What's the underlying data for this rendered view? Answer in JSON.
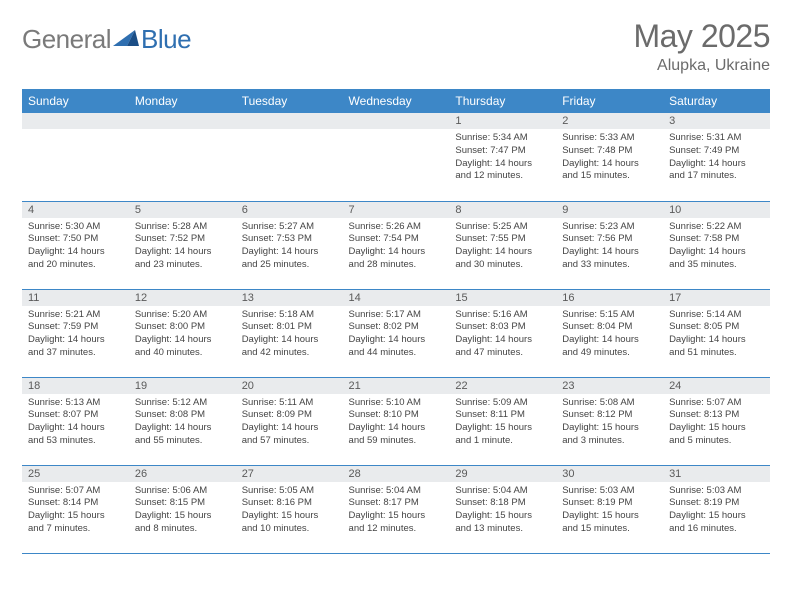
{
  "brand": {
    "name_prefix": "General",
    "name_suffix": "Blue"
  },
  "title": "May 2025",
  "location": "Alupka, Ukraine",
  "colors": {
    "header_bg": "#3d87c7",
    "header_text": "#ffffff",
    "daynum_bg": "#e9ebed",
    "text": "#444444",
    "title_text": "#6b6b6b",
    "divider": "#3d87c7",
    "logo_gray": "#7a7a7a",
    "logo_blue": "#2f6fb0"
  },
  "day_headers": [
    "Sunday",
    "Monday",
    "Tuesday",
    "Wednesday",
    "Thursday",
    "Friday",
    "Saturday"
  ],
  "weeks": [
    [
      {
        "n": "",
        "lines": []
      },
      {
        "n": "",
        "lines": []
      },
      {
        "n": "",
        "lines": []
      },
      {
        "n": "",
        "lines": []
      },
      {
        "n": "1",
        "lines": [
          "Sunrise: 5:34 AM",
          "Sunset: 7:47 PM",
          "Daylight: 14 hours",
          "and 12 minutes."
        ]
      },
      {
        "n": "2",
        "lines": [
          "Sunrise: 5:33 AM",
          "Sunset: 7:48 PM",
          "Daylight: 14 hours",
          "and 15 minutes."
        ]
      },
      {
        "n": "3",
        "lines": [
          "Sunrise: 5:31 AM",
          "Sunset: 7:49 PM",
          "Daylight: 14 hours",
          "and 17 minutes."
        ]
      }
    ],
    [
      {
        "n": "4",
        "lines": [
          "Sunrise: 5:30 AM",
          "Sunset: 7:50 PM",
          "Daylight: 14 hours",
          "and 20 minutes."
        ]
      },
      {
        "n": "5",
        "lines": [
          "Sunrise: 5:28 AM",
          "Sunset: 7:52 PM",
          "Daylight: 14 hours",
          "and 23 minutes."
        ]
      },
      {
        "n": "6",
        "lines": [
          "Sunrise: 5:27 AM",
          "Sunset: 7:53 PM",
          "Daylight: 14 hours",
          "and 25 minutes."
        ]
      },
      {
        "n": "7",
        "lines": [
          "Sunrise: 5:26 AM",
          "Sunset: 7:54 PM",
          "Daylight: 14 hours",
          "and 28 minutes."
        ]
      },
      {
        "n": "8",
        "lines": [
          "Sunrise: 5:25 AM",
          "Sunset: 7:55 PM",
          "Daylight: 14 hours",
          "and 30 minutes."
        ]
      },
      {
        "n": "9",
        "lines": [
          "Sunrise: 5:23 AM",
          "Sunset: 7:56 PM",
          "Daylight: 14 hours",
          "and 33 minutes."
        ]
      },
      {
        "n": "10",
        "lines": [
          "Sunrise: 5:22 AM",
          "Sunset: 7:58 PM",
          "Daylight: 14 hours",
          "and 35 minutes."
        ]
      }
    ],
    [
      {
        "n": "11",
        "lines": [
          "Sunrise: 5:21 AM",
          "Sunset: 7:59 PM",
          "Daylight: 14 hours",
          "and 37 minutes."
        ]
      },
      {
        "n": "12",
        "lines": [
          "Sunrise: 5:20 AM",
          "Sunset: 8:00 PM",
          "Daylight: 14 hours",
          "and 40 minutes."
        ]
      },
      {
        "n": "13",
        "lines": [
          "Sunrise: 5:18 AM",
          "Sunset: 8:01 PM",
          "Daylight: 14 hours",
          "and 42 minutes."
        ]
      },
      {
        "n": "14",
        "lines": [
          "Sunrise: 5:17 AM",
          "Sunset: 8:02 PM",
          "Daylight: 14 hours",
          "and 44 minutes."
        ]
      },
      {
        "n": "15",
        "lines": [
          "Sunrise: 5:16 AM",
          "Sunset: 8:03 PM",
          "Daylight: 14 hours",
          "and 47 minutes."
        ]
      },
      {
        "n": "16",
        "lines": [
          "Sunrise: 5:15 AM",
          "Sunset: 8:04 PM",
          "Daylight: 14 hours",
          "and 49 minutes."
        ]
      },
      {
        "n": "17",
        "lines": [
          "Sunrise: 5:14 AM",
          "Sunset: 8:05 PM",
          "Daylight: 14 hours",
          "and 51 minutes."
        ]
      }
    ],
    [
      {
        "n": "18",
        "lines": [
          "Sunrise: 5:13 AM",
          "Sunset: 8:07 PM",
          "Daylight: 14 hours",
          "and 53 minutes."
        ]
      },
      {
        "n": "19",
        "lines": [
          "Sunrise: 5:12 AM",
          "Sunset: 8:08 PM",
          "Daylight: 14 hours",
          "and 55 minutes."
        ]
      },
      {
        "n": "20",
        "lines": [
          "Sunrise: 5:11 AM",
          "Sunset: 8:09 PM",
          "Daylight: 14 hours",
          "and 57 minutes."
        ]
      },
      {
        "n": "21",
        "lines": [
          "Sunrise: 5:10 AM",
          "Sunset: 8:10 PM",
          "Daylight: 14 hours",
          "and 59 minutes."
        ]
      },
      {
        "n": "22",
        "lines": [
          "Sunrise: 5:09 AM",
          "Sunset: 8:11 PM",
          "Daylight: 15 hours",
          "and 1 minute."
        ]
      },
      {
        "n": "23",
        "lines": [
          "Sunrise: 5:08 AM",
          "Sunset: 8:12 PM",
          "Daylight: 15 hours",
          "and 3 minutes."
        ]
      },
      {
        "n": "24",
        "lines": [
          "Sunrise: 5:07 AM",
          "Sunset: 8:13 PM",
          "Daylight: 15 hours",
          "and 5 minutes."
        ]
      }
    ],
    [
      {
        "n": "25",
        "lines": [
          "Sunrise: 5:07 AM",
          "Sunset: 8:14 PM",
          "Daylight: 15 hours",
          "and 7 minutes."
        ]
      },
      {
        "n": "26",
        "lines": [
          "Sunrise: 5:06 AM",
          "Sunset: 8:15 PM",
          "Daylight: 15 hours",
          "and 8 minutes."
        ]
      },
      {
        "n": "27",
        "lines": [
          "Sunrise: 5:05 AM",
          "Sunset: 8:16 PM",
          "Daylight: 15 hours",
          "and 10 minutes."
        ]
      },
      {
        "n": "28",
        "lines": [
          "Sunrise: 5:04 AM",
          "Sunset: 8:17 PM",
          "Daylight: 15 hours",
          "and 12 minutes."
        ]
      },
      {
        "n": "29",
        "lines": [
          "Sunrise: 5:04 AM",
          "Sunset: 8:18 PM",
          "Daylight: 15 hours",
          "and 13 minutes."
        ]
      },
      {
        "n": "30",
        "lines": [
          "Sunrise: 5:03 AM",
          "Sunset: 8:19 PM",
          "Daylight: 15 hours",
          "and 15 minutes."
        ]
      },
      {
        "n": "31",
        "lines": [
          "Sunrise: 5:03 AM",
          "Sunset: 8:19 PM",
          "Daylight: 15 hours",
          "and 16 minutes."
        ]
      }
    ]
  ]
}
